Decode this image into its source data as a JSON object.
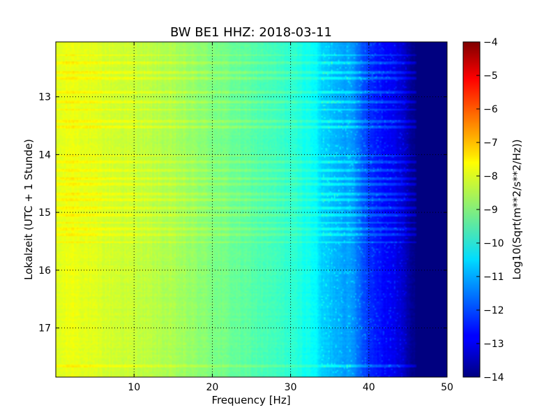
{
  "chart_data": {
    "type": "heatmap",
    "title": "BW BE1 HHZ: 2018-03-11",
    "xlabel": "Frequency [Hz]",
    "ylabel": "Lokalzeit (UTC + 1 Stunde)",
    "colorbar_label": "Log10(Sqrt(m**2/s**2/Hz))",
    "colormap": "jet",
    "grid": true,
    "xlim": [
      0,
      50
    ],
    "ylim": [
      12.05,
      17.85
    ],
    "y_inverted": true,
    "x_ticks": [
      10,
      20,
      30,
      40,
      50
    ],
    "x_tick_labels": [
      "10",
      "20",
      "30",
      "40",
      "50"
    ],
    "y_ticks": [
      13,
      14,
      15,
      16,
      17
    ],
    "y_tick_labels": [
      "13",
      "14",
      "15",
      "16",
      "17"
    ],
    "color_range": [
      -14,
      -4
    ],
    "colorbar_ticks": [
      -4,
      -5,
      -6,
      -7,
      -8,
      -9,
      -10,
      -11,
      -12,
      -13,
      -14
    ],
    "colorbar_tick_labels": [
      "−4",
      "−5",
      "−6",
      "−7",
      "−8",
      "−9",
      "−10",
      "−11",
      "−12",
      "−13",
      "−14"
    ],
    "spectrum_profile": {
      "frequency_hz": [
        0,
        2,
        5,
        10,
        15,
        20,
        25,
        30,
        33,
        34,
        36,
        38,
        39,
        40,
        42,
        44,
        45,
        46,
        50
      ],
      "log10_psd": [
        -8.1,
        -7.9,
        -8.1,
        -8.3,
        -8.6,
        -9.0,
        -9.4,
        -9.8,
        -10.2,
        -10.7,
        -11.0,
        -11.3,
        -11.8,
        -12.3,
        -12.7,
        -13.1,
        -13.6,
        -14.0,
        -14.0
      ]
    },
    "bright_bands_hours": [
      12.28,
      12.41,
      12.58,
      12.67,
      12.92,
      13.08,
      13.22,
      13.42,
      13.52,
      14.02,
      14.12,
      14.28,
      14.42,
      14.52,
      14.68,
      14.78,
      14.92,
      15.05,
      15.18,
      15.28,
      15.38,
      15.52,
      17.65
    ]
  }
}
